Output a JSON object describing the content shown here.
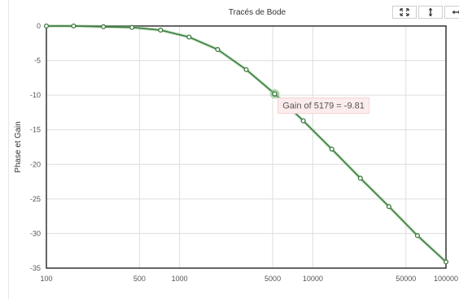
{
  "chart_data": {
    "type": "line",
    "title": "Tracés de Bode",
    "xlabel": "",
    "ylabel": "Phase et Gain",
    "x_scale": "log",
    "xlim": [
      100,
      100000
    ],
    "ylim": [
      -35,
      0
    ],
    "x_ticks": [
      100,
      500,
      1000,
      5000,
      10000,
      50000,
      100000
    ],
    "x_tick_labels": [
      "100",
      "500",
      "1000",
      "5000",
      "10000",
      "50000",
      "100000"
    ],
    "y_ticks": [
      0,
      -5,
      -10,
      -15,
      -20,
      -25,
      -30,
      -35
    ],
    "y_tick_labels": [
      "0",
      "-5",
      "-10",
      "-15",
      "-20",
      "-25",
      "-30",
      "-35"
    ],
    "grid": true,
    "series": [
      {
        "color": "#3c7a3c",
        "x": [
          100,
          160,
          268,
          439,
          720,
          1179,
          1931,
          3162,
          5179,
          8483,
          13895,
          22758,
          37276,
          61054,
          100000
        ],
        "y": [
          0.0,
          0.0,
          -0.1,
          -0.2,
          -0.6,
          -1.6,
          -3.4,
          -6.3,
          -9.81,
          -13.7,
          -17.8,
          -22.0,
          -26.1,
          -30.3,
          -34.1
        ]
      }
    ],
    "tooltip": {
      "text": "Gain of 5179 = -9.81",
      "x": 5179,
      "y": -9.81
    }
  },
  "toolbar": {
    "buttons": [
      {
        "name": "expand-icon"
      },
      {
        "name": "vertical-arrows-icon"
      },
      {
        "name": "horizontal-arrows-icon"
      }
    ]
  }
}
